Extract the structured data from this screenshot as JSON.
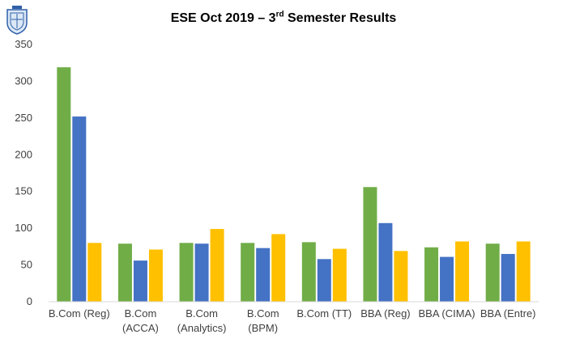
{
  "header": {
    "title_main": "ESE Oct 2019 – 3",
    "title_sup": "rd",
    "title_rest": " Semester Results"
  },
  "logo": {
    "icon": "college-crest-icon"
  },
  "colors": {
    "series1": "#70ad47",
    "series2": "#4472c4",
    "series3": "#ffc000",
    "axis": "#d9d9d9"
  },
  "chart_data": {
    "type": "bar",
    "title": "ESE Oct 2019 – 3rd Semester Results",
    "xlabel": "",
    "ylabel": "",
    "ylim": [
      0,
      350
    ],
    "yticks": [
      0,
      50,
      100,
      150,
      200,
      250,
      300,
      350
    ],
    "grid": false,
    "legend": "none",
    "categories": [
      [
        "B.Com (Reg)"
      ],
      [
        "B.Com",
        "(ACCA)"
      ],
      [
        "B.Com",
        "(Analytics)"
      ],
      [
        "B.Com",
        "(BPM)"
      ],
      [
        "B.Com (TT)"
      ],
      [
        "BBA (Reg)"
      ],
      [
        "BBA (CIMA)"
      ],
      [
        "BBA (Entre)"
      ]
    ],
    "series": [
      {
        "values": [
          319,
          79,
          80,
          80,
          81,
          156,
          74,
          79
        ]
      },
      {
        "values": [
          252,
          56,
          79,
          73,
          58,
          107,
          61,
          65
        ]
      },
      {
        "values": [
          80,
          71,
          99,
          92,
          72,
          69,
          82,
          82
        ]
      }
    ]
  }
}
